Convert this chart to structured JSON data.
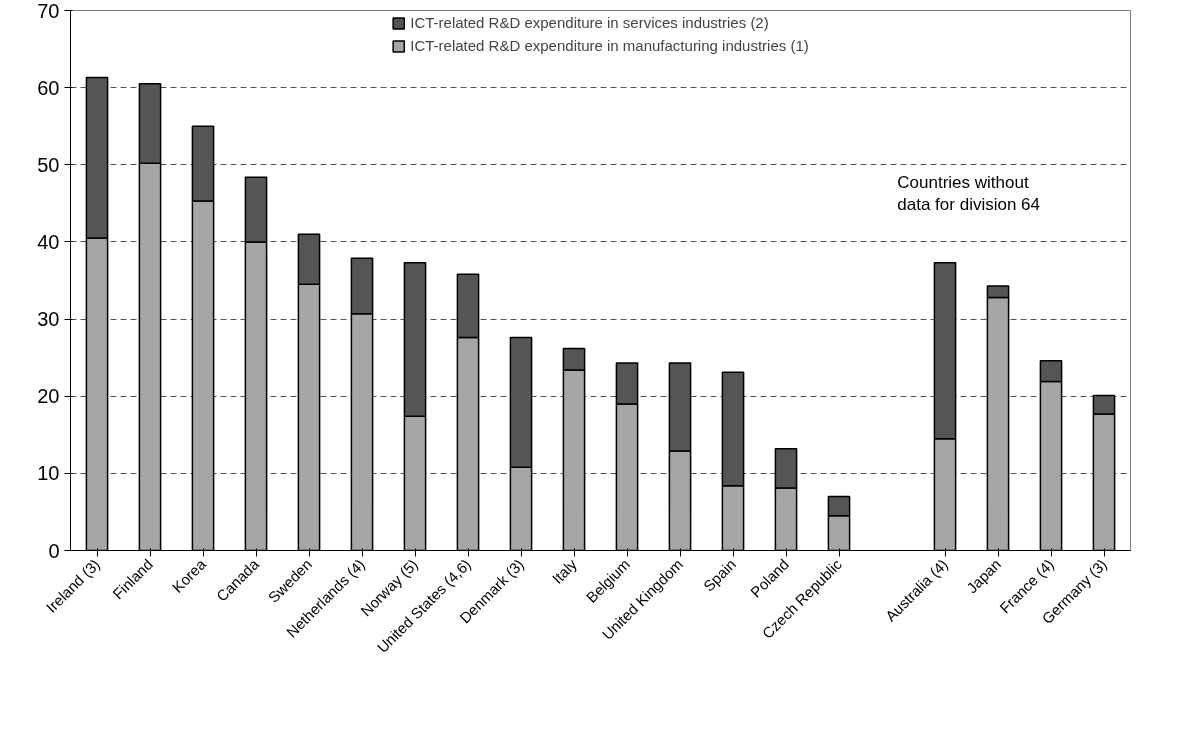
{
  "chart_data": {
    "type": "bar",
    "stacked": true,
    "categories": [
      "Ireland (3)",
      "Finland",
      "Korea",
      "Canada",
      "Sweden",
      "Netherlands (4)",
      "Norway (5)",
      "United States (4,6)",
      "Denmark (3)",
      "Italy",
      "Belgium",
      "United Kingdom",
      "Spain",
      "Poland",
      "Czech Republic",
      null,
      "Australia (4)",
      "Japan",
      "France (4)",
      "Germany (3)"
    ],
    "series": [
      {
        "name": "ICT-related R&D expenditure in manufacturing industries (1)",
        "color": "#a6a6a6",
        "values": [
          40.5,
          50.2,
          45.3,
          40,
          34.5,
          30.7,
          17.4,
          27.6,
          10.8,
          23.4,
          19,
          12.9,
          8.4,
          8.1,
          4.5,
          null,
          14.5,
          32.8,
          21.9,
          17.7
        ]
      },
      {
        "name": "ICT-related R&D expenditure in services industries (2)",
        "color": "#555555",
        "values": [
          20.8,
          10.3,
          9.7,
          8.4,
          6.5,
          7.2,
          19.9,
          8.2,
          16.8,
          2.8,
          5.3,
          11.4,
          14.7,
          5.1,
          2.5,
          null,
          22.8,
          1.5,
          2.7,
          2.4
        ]
      }
    ],
    "ylim": [
      0,
      70
    ],
    "yticks": [
      0,
      10,
      20,
      30,
      40,
      50,
      60,
      70
    ],
    "grid": "y",
    "legend": "top",
    "annotations": [
      "Countries without\ndata for division 64"
    ]
  }
}
